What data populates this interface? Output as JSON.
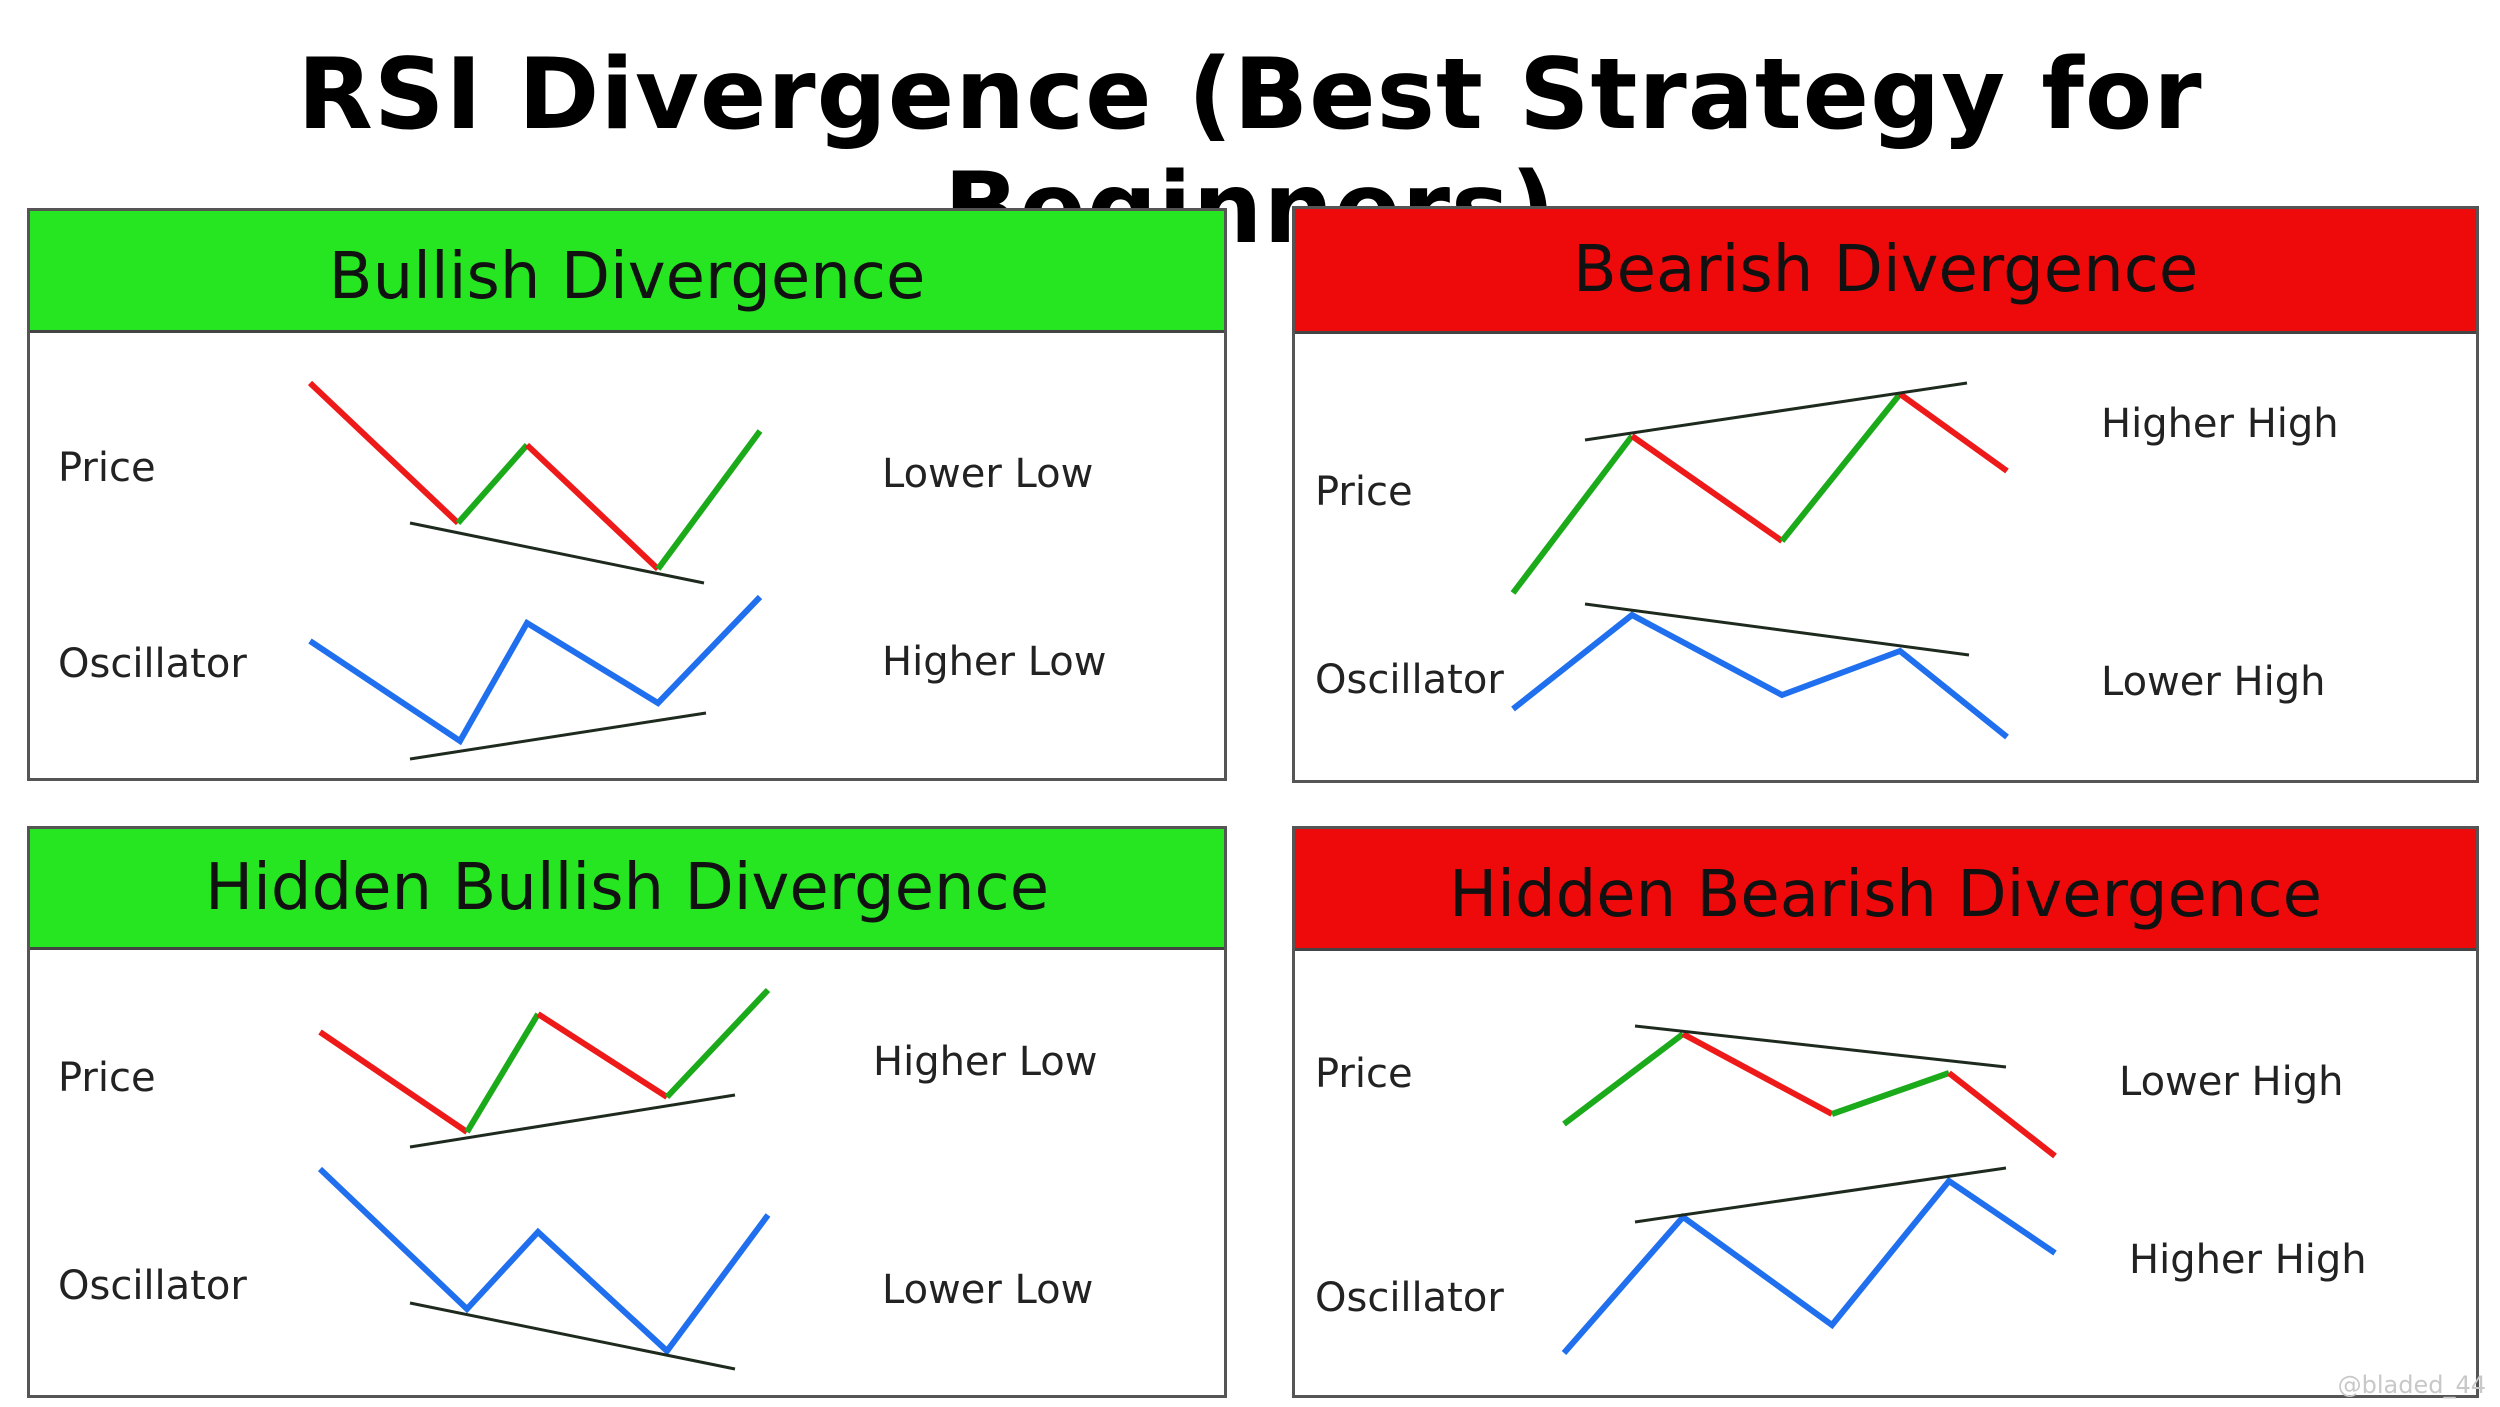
{
  "title": "RSI Divergence (Best Strategy for Beginners)",
  "watermark": "@bladed_44",
  "colors": {
    "bullish_header": "#26e622",
    "bearish_header": "#ee0a0a",
    "up_segment": "#1aaa1a",
    "down_segment": "#ee1a1a",
    "oscillator_line": "#1f6fee",
    "trend_line": "#1f2a1f"
  },
  "panels": [
    {
      "name": "bullish-divergence",
      "header": "Bullish Divergence",
      "header_color": "green",
      "price_label": "Price",
      "oscillator_label": "Oscillator",
      "price_note": "Lower Low",
      "oscillator_note": "Higher Low"
    },
    {
      "name": "bearish-divergence",
      "header": "Bearish Divergence",
      "header_color": "red",
      "price_label": "Price",
      "oscillator_label": "Oscillator",
      "price_note": "Higher High",
      "oscillator_note": "Lower High"
    },
    {
      "name": "hidden-bullish-divergence",
      "header": "Hidden Bullish Divergence",
      "header_color": "green",
      "price_label": "Price",
      "oscillator_label": "Oscillator",
      "price_note": "Higher Low",
      "oscillator_note": "Lower Low"
    },
    {
      "name": "hidden-bearish-divergence",
      "header": "Hidden Bearish Divergence",
      "header_color": "red",
      "price_label": "Price",
      "oscillator_label": "Oscillator",
      "price_note": "Lower High",
      "oscillator_note": "Higher High"
    }
  ]
}
